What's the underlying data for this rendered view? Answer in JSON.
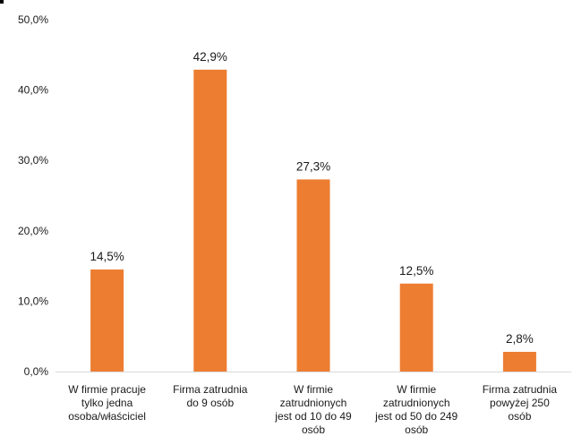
{
  "chart_data": {
    "type": "bar",
    "title": "",
    "xlabel": "",
    "ylabel": "",
    "ylim": [
      0,
      50
    ],
    "yticks": [
      "0,0%",
      "10,0%",
      "20,0%",
      "30,0%",
      "40,0%",
      "50,0%"
    ],
    "grid": false,
    "legend": "none",
    "bar_color": "#ED7D31",
    "categories": [
      [
        "W firmie pracuje",
        "tylko jedna",
        "osoba/właściciel"
      ],
      [
        "Firma zatrudnia",
        "do 9 osób"
      ],
      [
        "W firmie",
        "zatrudnionych",
        "jest od 10 do 49",
        "osób"
      ],
      [
        "W firmie",
        "zatrudnionych",
        "jest od 50 do 249",
        "osób"
      ],
      [
        "Firma zatrudnia",
        "powyżej 250",
        "osób"
      ]
    ],
    "values": [
      14.5,
      42.9,
      27.3,
      12.5,
      2.8
    ],
    "data_labels": [
      "14,5%",
      "42,9%",
      "27,3%",
      "12,5%",
      "2,8%"
    ]
  }
}
